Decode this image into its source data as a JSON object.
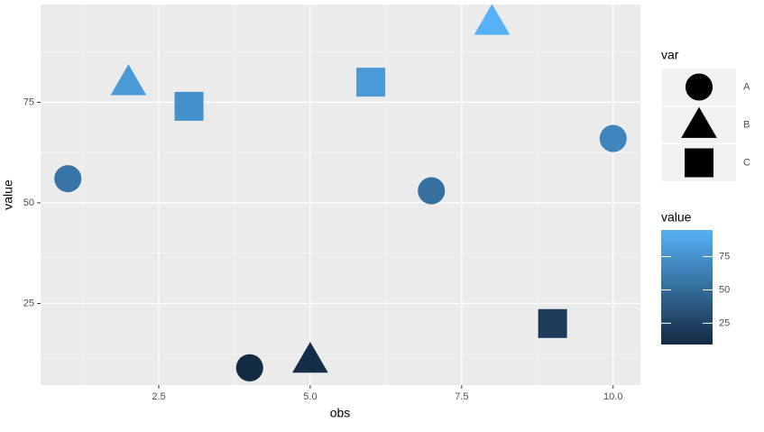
{
  "chart_data": {
    "type": "scatter",
    "x_label": "obs",
    "y_label": "value",
    "series": [
      {
        "name": "A",
        "shape": "circle",
        "x": [
          1,
          4,
          7,
          10
        ],
        "values": [
          56,
          9,
          53,
          66
        ]
      },
      {
        "name": "B",
        "shape": "triangle",
        "x": [
          2,
          5,
          8
        ],
        "values": [
          80,
          11,
          95
        ]
      },
      {
        "name": "C",
        "shape": "square",
        "x": [
          3,
          6,
          9
        ],
        "values": [
          74,
          80,
          20
        ]
      }
    ],
    "xlim": [
      0.55,
      10.45
    ],
    "xticks": [
      2.5,
      {
        "value": 5,
        "label": "5.0"
      },
      7.5,
      {
        "value": 10,
        "label": "10.0"
      }
    ],
    "x_minor_ticks": [
      1.25,
      3.75,
      6.25,
      8.75
    ],
    "ylim": [
      4.7,
      99.3
    ],
    "yticks": [
      25,
      50,
      75
    ],
    "y_minor_ticks": [
      12.5,
      37.5,
      62.5,
      87.5
    ],
    "grid": true,
    "shape_legend_title": "var",
    "color_legend_title": "value",
    "color_scale": {
      "low": "#132B43",
      "high": "#56B1F7",
      "limits": [
        9,
        95
      ],
      "ticks": [
        25,
        50,
        75
      ]
    }
  }
}
